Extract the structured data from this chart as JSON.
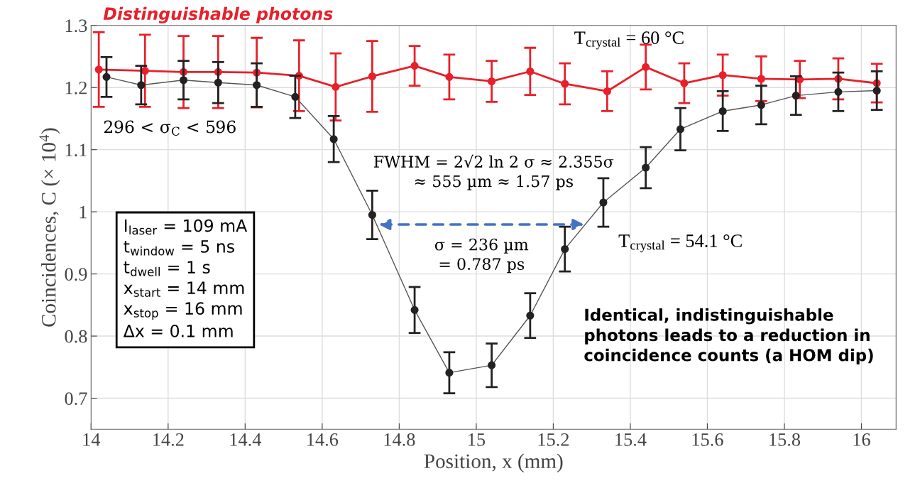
{
  "chart_data": {
    "type": "line",
    "xlabel": "Position, x (mm)",
    "ylabel": "Coincidences, C (× 10$^{4}$)",
    "xlim": [
      14,
      16.09
    ],
    "ylim": [
      0.65,
      1.3
    ],
    "xticks": [
      14,
      14.2,
      14.4,
      14.6,
      14.8,
      15,
      15.2,
      15.4,
      15.6,
      15.8,
      16
    ],
    "yticks": [
      0.7,
      0.8,
      0.9,
      1,
      1.1,
      1.2,
      1.3
    ],
    "grid": true,
    "marker": "circle",
    "line_style": "solid",
    "series": [
      {
        "name": "Distinguishable photons",
        "color": "#e8202a",
        "x": [
          14.02,
          14.14,
          14.24,
          14.33,
          14.43,
          14.54,
          14.635,
          14.73,
          14.84,
          14.93,
          15.04,
          15.14,
          15.23,
          15.34,
          15.44,
          15.54,
          15.64,
          15.74,
          15.84,
          15.94,
          16.04
        ],
        "values": [
          1.229,
          1.227,
          1.225,
          1.225,
          1.224,
          1.219,
          1.201,
          1.218,
          1.235,
          1.217,
          1.21,
          1.226,
          1.206,
          1.194,
          1.233,
          1.207,
          1.22,
          1.214,
          1.213,
          1.214,
          1.207
        ],
        "errors": [
          0.06,
          0.058,
          0.058,
          0.058,
          0.056,
          0.057,
          0.054,
          0.057,
          0.032,
          0.036,
          0.033,
          0.038,
          0.033,
          0.032,
          0.036,
          0.032,
          0.033,
          0.036,
          0.03,
          0.033,
          0.031
        ]
      },
      {
        "color": "#222222",
        "x": [
          14.04,
          14.13,
          14.24,
          14.33,
          14.43,
          14.53,
          14.63,
          14.73,
          14.84,
          14.93,
          15.04,
          15.14,
          15.23,
          15.33,
          15.44,
          15.53,
          15.64,
          15.74,
          15.83,
          15.94,
          16.04
        ],
        "values": [
          1.217,
          1.204,
          1.212,
          1.208,
          1.204,
          1.185,
          1.117,
          0.995,
          0.842,
          0.741,
          0.753,
          0.833,
          0.94,
          1.015,
          1.071,
          1.133,
          1.162,
          1.172,
          1.187,
          1.193,
          1.195
        ],
        "errors": [
          0.032,
          0.031,
          0.031,
          0.033,
          0.035,
          0.034,
          0.037,
          0.039,
          0.037,
          0.033,
          0.035,
          0.036,
          0.036,
          0.039,
          0.033,
          0.034,
          0.032,
          0.031,
          0.031,
          0.031,
          0.031
        ]
      }
    ],
    "annotations": [
      "T$_{crystal}$ = 60 °C",
      "296 < σ$_{C}$ < 596",
      "FWHM = 2√2 ln 2 σ ≈ 2.355σ\n≈ 555 µm ≈ 1.57 ps",
      "σ = 236 µm\n= 0.787 ps",
      "T$_{crystal}$ = 54.1 °C",
      "I$_{laser}$ = 109 mA\nt$_{window}$ = 5 ns\nt$_{dwell}$ = 1 s\nx$_{start}$ = 14 mm\nx$_{stop}$ = 16 mm\nΔx = 0.1 mm",
      "Identical, indistinguishable\nphotons leads to a reduction in\ncoincidence counts (a HOM dip)"
    ]
  }
}
